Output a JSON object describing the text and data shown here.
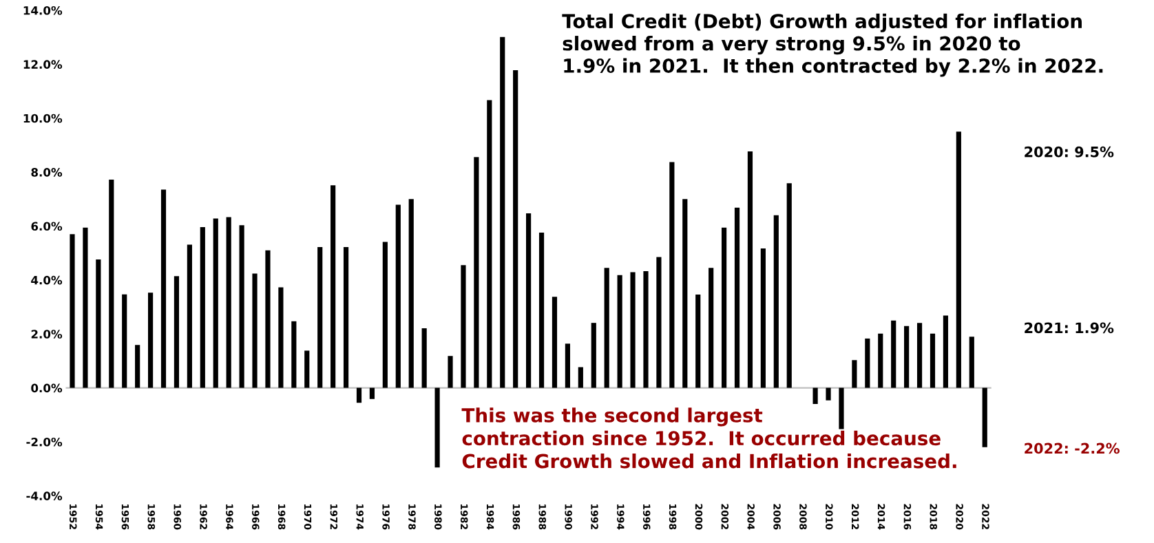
{
  "chart_data": {
    "type": "bar",
    "title": "Total Credit (Debt) Growth adjusted for inflation\nslowed from a very strong 9.5% in 2020 to\n1.9% in 2021.  It then contracted by 2.2% in 2022.",
    "categories": [
      "1952",
      null,
      "1954",
      null,
      "1956",
      null,
      "1958",
      null,
      "1960",
      null,
      "1962",
      null,
      "1964",
      null,
      "1966",
      null,
      "1968",
      null,
      "1970",
      null,
      "1972",
      null,
      "1974",
      null,
      "1976",
      null,
      "1978",
      null,
      "1980",
      null,
      "1982",
      null,
      "1984",
      null,
      "1986",
      null,
      "1988",
      null,
      "1990",
      null,
      "1992",
      null,
      "1994",
      null,
      "1996",
      null,
      "1998",
      null,
      "2000",
      null,
      "2002",
      null,
      "2004",
      null,
      "2006",
      null,
      "2008",
      null,
      "2010",
      null,
      "2012",
      null,
      "2014",
      null,
      "2016",
      null,
      "2018",
      null,
      "2020",
      null,
      "2022"
    ],
    "values": [
      5.7,
      5.94,
      4.76,
      7.72,
      3.47,
      1.59,
      3.53,
      7.35,
      4.14,
      5.31,
      5.96,
      6.28,
      6.33,
      6.03,
      4.24,
      5.1,
      3.73,
      2.47,
      1.38,
      5.22,
      7.51,
      5.22,
      -0.55,
      -0.41,
      5.41,
      6.79,
      7.0,
      2.21,
      -2.95,
      1.18,
      4.55,
      8.56,
      10.67,
      13.01,
      11.78,
      6.47,
      5.76,
      3.38,
      1.64,
      0.77,
      2.41,
      4.45,
      4.18,
      4.29,
      4.33,
      4.85,
      8.37,
      7.0,
      3.46,
      4.45,
      5.94,
      6.68,
      8.77,
      5.17,
      6.4,
      7.59,
      0,
      -0.6,
      -0.46,
      -1.53,
      1.03,
      1.83,
      2.01,
      2.5,
      2.29,
      2.41,
      2.01,
      2.68,
      9.5,
      1.9,
      -2.2
    ],
    "color": "#000000",
    "ylim": [
      -4,
      14
    ],
    "yticks": [
      {
        "value": -4,
        "label": "-4.0%"
      },
      {
        "value": -2,
        "label": "-2.0%"
      },
      {
        "value": 0,
        "label": "0.0%"
      },
      {
        "value": 2,
        "label": "2.0%"
      },
      {
        "value": 4,
        "label": "4.0%"
      },
      {
        "value": 6,
        "label": "6.0%"
      },
      {
        "value": 8,
        "label": "8.0%"
      },
      {
        "value": 10,
        "label": "10.0%"
      },
      {
        "value": 12,
        "label": "12.0%"
      },
      {
        "value": 14,
        "label": "14.0%"
      }
    ],
    "ref_lines": [
      {
        "axis": "y",
        "value": 0,
        "color": "#bfbfbf",
        "line_style": "solid"
      }
    ],
    "annotations": [
      "This was the second largest\ncontraction since 1952.  It occurred because\nCredit Growth slowed and Inflation increased.",
      "2020: 9.5%",
      "2021: 1.9%",
      "2022: -2.2%"
    ],
    "grid": false,
    "legend": false
  }
}
